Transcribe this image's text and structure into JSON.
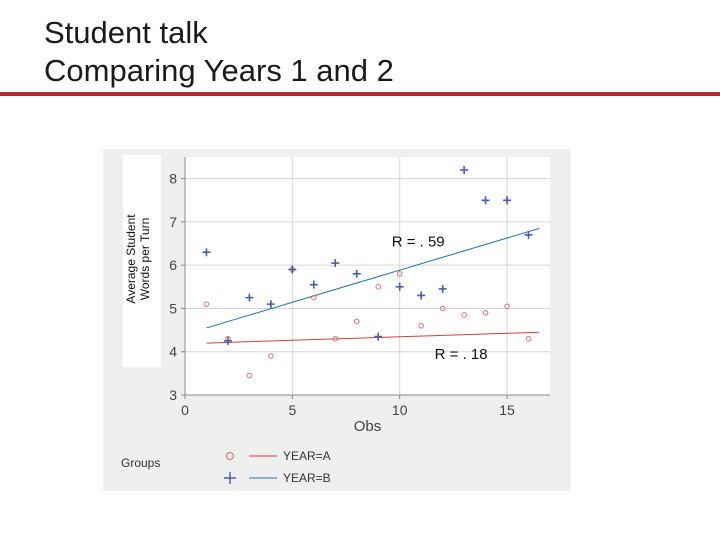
{
  "slide": {
    "title_line1": "Student talk",
    "title_line2": "Comparing Years 1 and 2",
    "accent_color": "#b22a2a"
  },
  "chart_data": {
    "type": "scatter",
    "title": "",
    "xlabel": "Obs",
    "ylabel_lines": [
      "Average Student",
      "Words per Turn"
    ],
    "xlim": [
      0,
      17
    ],
    "ylim": [
      3,
      8.5
    ],
    "xticks": [
      0,
      5,
      10,
      15
    ],
    "yticks": [
      3,
      4,
      5,
      6,
      7,
      8
    ],
    "grid": true,
    "legend": {
      "title": "Groups",
      "placement": "bottom-left",
      "entries": [
        "YEAR=A",
        "YEAR=B"
      ]
    },
    "series": [
      {
        "name": "YEAR=A",
        "marker": "circle",
        "color": "#e07070",
        "line_color": "#d04040",
        "x": [
          1,
          2,
          3,
          4,
          5,
          6,
          7,
          8,
          9,
          10,
          11,
          12,
          13,
          14,
          15,
          16
        ],
        "y": [
          5.1,
          4.3,
          3.45,
          3.9,
          5.9,
          5.25,
          4.3,
          4.7,
          5.5,
          5.8,
          4.6,
          5.0,
          4.85,
          4.9,
          5.05,
          4.3
        ],
        "fit": {
          "x": [
            1,
            16.5
          ],
          "y": [
            4.2,
            4.45
          ]
        }
      },
      {
        "name": "YEAR=B",
        "marker": "plus",
        "color": "#4060b0",
        "line_color": "#2070a8",
        "x": [
          1,
          2,
          3,
          4,
          5,
          6,
          7,
          8,
          9,
          10,
          11,
          12,
          13,
          14,
          15,
          16
        ],
        "y": [
          6.3,
          4.25,
          5.25,
          5.1,
          5.9,
          5.55,
          6.05,
          5.8,
          4.35,
          5.5,
          5.3,
          5.45,
          8.2,
          7.5,
          7.5,
          6.7
        ],
        "fit": {
          "x": [
            1,
            16.5
          ],
          "y": [
            4.55,
            6.85
          ]
        }
      }
    ],
    "annotations": [
      {
        "text": "R = . 59",
        "x": 10,
        "y": 6.55
      },
      {
        "text": "R = . 18",
        "x": 12,
        "y": 3.95
      }
    ]
  }
}
